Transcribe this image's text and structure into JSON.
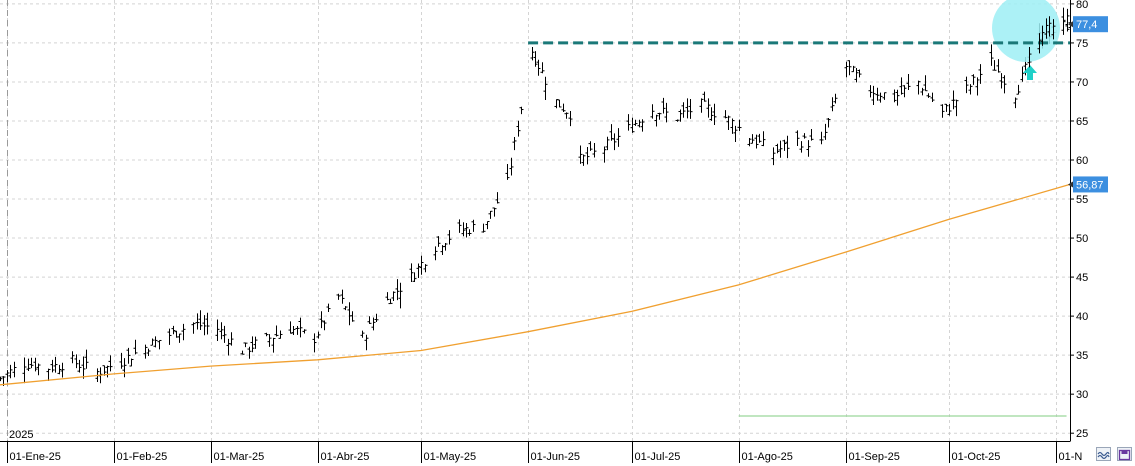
{
  "chart_data": {
    "type": "ohlc",
    "title": "",
    "xlabel": "",
    "ylabel": "",
    "ylim": [
      24,
      80.5
    ],
    "x_range": [
      "2024-12-30",
      "2025-11-05"
    ],
    "grid": true,
    "year_label": "2025",
    "x_ticks": [
      {
        "date": "2025-01-01",
        "label": "01-Ene-25"
      },
      {
        "date": "2025-02-01",
        "label": "01-Feb-25"
      },
      {
        "date": "2025-03-01",
        "label": "01-Mar-25"
      },
      {
        "date": "2025-04-01",
        "label": "01-Abr-25"
      },
      {
        "date": "2025-05-01",
        "label": "01-May-25"
      },
      {
        "date": "2025-06-01",
        "label": "01-Jun-25"
      },
      {
        "date": "2025-07-01",
        "label": "01-Jul-25"
      },
      {
        "date": "2025-08-01",
        "label": "01-Ago-25"
      },
      {
        "date": "2025-09-01",
        "label": "01-Sep-25"
      },
      {
        "date": "2025-10-01",
        "label": "01-Oct-25"
      },
      {
        "date": "2025-11-01",
        "label": "01-N"
      }
    ],
    "y_ticks": [
      25,
      30,
      35,
      40,
      45,
      50,
      55,
      60,
      65,
      70,
      75,
      80
    ],
    "y_tick_labels": [
      "25",
      "30",
      "35",
      "40",
      "45",
      "50",
      "55",
      "60",
      "65",
      "70",
      "75",
      "80"
    ],
    "price_path": [
      [
        "2024-12-30",
        32.0
      ],
      [
        "2025-01-06",
        34.0
      ],
      [
        "2025-01-13",
        33.4
      ],
      [
        "2025-01-20",
        34.2
      ],
      [
        "2025-01-27",
        32.8
      ],
      [
        "2025-02-03",
        34.2
      ],
      [
        "2025-02-10",
        36.0
      ],
      [
        "2025-02-17",
        37.6
      ],
      [
        "2025-02-24",
        39.0
      ],
      [
        "2025-03-03",
        38.4
      ],
      [
        "2025-03-10",
        35.6
      ],
      [
        "2025-03-17",
        37.0
      ],
      [
        "2025-03-24",
        38.4
      ],
      [
        "2025-03-31",
        37.2
      ],
      [
        "2025-04-07",
        42.5
      ],
      [
        "2025-04-14",
        37.2
      ],
      [
        "2025-04-21",
        42.0
      ],
      [
        "2025-04-28",
        45.0
      ],
      [
        "2025-05-05",
        49.0
      ],
      [
        "2025-05-12",
        51.0
      ],
      [
        "2025-05-19",
        51.5
      ],
      [
        "2025-05-26",
        57.0
      ],
      [
        "2025-06-02",
        74.0
      ],
      [
        "2025-06-09",
        67.5
      ],
      [
        "2025-06-13",
        66.0
      ],
      [
        "2025-06-16",
        60.0
      ],
      [
        "2025-06-23",
        61.5
      ],
      [
        "2025-06-30",
        64.0
      ],
      [
        "2025-07-07",
        66.5
      ],
      [
        "2025-07-14",
        65.5
      ],
      [
        "2025-07-21",
        67.0
      ],
      [
        "2025-07-28",
        65.5
      ],
      [
        "2025-08-04",
        63.0
      ],
      [
        "2025-08-11",
        61.0
      ],
      [
        "2025-08-18",
        62.5
      ],
      [
        "2025-08-25",
        62.0
      ],
      [
        "2025-09-01",
        72.0
      ],
      [
        "2025-09-08",
        69.0
      ],
      [
        "2025-09-15",
        68.0
      ],
      [
        "2025-09-22",
        70.0
      ],
      [
        "2025-09-29",
        66.0
      ],
      [
        "2025-10-06",
        69.0
      ],
      [
        "2025-10-13",
        72.5
      ],
      [
        "2025-10-20",
        68.5
      ],
      [
        "2025-10-27",
        75.5
      ],
      [
        "2025-11-03",
        77.4
      ]
    ],
    "moving_average": [
      [
        "2024-12-30",
        31.2
      ],
      [
        "2025-02-01",
        32.6
      ],
      [
        "2025-03-01",
        33.6
      ],
      [
        "2025-04-01",
        34.4
      ],
      [
        "2025-05-01",
        35.6
      ],
      [
        "2025-06-01",
        38.0
      ],
      [
        "2025-07-01",
        40.6
      ],
      [
        "2025-08-01",
        44.0
      ],
      [
        "2025-09-01",
        48.2
      ],
      [
        "2025-10-01",
        52.4
      ],
      [
        "2025-11-05",
        56.87
      ]
    ],
    "resistance_line": {
      "from": "2025-06-01",
      "to": "2025-11-05",
      "value": 75
    },
    "support_line": {
      "from": "2025-08-01",
      "to": "2025-11-04",
      "value": 27.2
    },
    "last_price_label": "77,4",
    "last_price_value": 77.4,
    "ma_label": "56,87",
    "ma_value": 56.87,
    "colors": {
      "bars": "#000000",
      "ma": "#f0a030",
      "resistance": "#1a7878",
      "highlight": "#9eeef5",
      "arrow": "#20d0c8",
      "label_bg": "#3c8fe0",
      "support": "#9ad89a"
    }
  },
  "toolbar": {
    "buttons": [
      "zoom-button",
      "save-button"
    ]
  }
}
